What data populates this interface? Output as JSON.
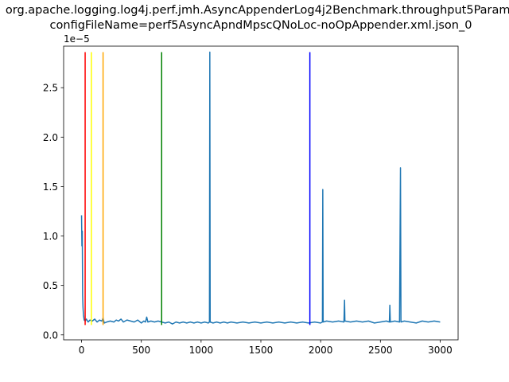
{
  "chart_data": {
    "type": "line",
    "title_lines": [
      "org.apache.logging.log4j.perf.jmh.AsyncAppenderLog4j2Benchmark.throughput5Params",
      "configFileName=perf5AsyncApndMpscQNoLoc-noOpAppender.xml.json_0"
    ],
    "xlabel": "",
    "ylabel": "",
    "y_offset_label": "1e−5",
    "xlim": [
      -150,
      3150
    ],
    "ylim": [
      -0.05,
      2.92
    ],
    "x_ticks": [
      0,
      500,
      1000,
      1500,
      2000,
      2500,
      3000
    ],
    "y_ticks": [
      0.0,
      0.5,
      1.0,
      1.5,
      2.0,
      2.5
    ],
    "y_tick_labels": [
      "0.0",
      "0.5",
      "1.0",
      "1.5",
      "2.0",
      "2.5"
    ],
    "grid": false,
    "series": [
      {
        "color": "#1f77b4",
        "points": [
          [
            0,
            1.21
          ],
          [
            3,
            0.9
          ],
          [
            6,
            1.05
          ],
          [
            9,
            0.4
          ],
          [
            12,
            0.28
          ],
          [
            16,
            0.2
          ],
          [
            22,
            0.15
          ],
          [
            30,
            0.14
          ],
          [
            40,
            0.16
          ],
          [
            55,
            0.13
          ],
          [
            70,
            0.15
          ],
          [
            90,
            0.14
          ],
          [
            110,
            0.16
          ],
          [
            130,
            0.13
          ],
          [
            150,
            0.15
          ],
          [
            170,
            0.14
          ],
          [
            180,
            0.17
          ],
          [
            190,
            0.12
          ],
          [
            210,
            0.13
          ],
          [
            240,
            0.14
          ],
          [
            270,
            0.13
          ],
          [
            290,
            0.15
          ],
          [
            310,
            0.14
          ],
          [
            330,
            0.16
          ],
          [
            350,
            0.13
          ],
          [
            380,
            0.15
          ],
          [
            410,
            0.14
          ],
          [
            440,
            0.13
          ],
          [
            470,
            0.15
          ],
          [
            500,
            0.12
          ],
          [
            520,
            0.14
          ],
          [
            535,
            0.13
          ],
          [
            545,
            0.18
          ],
          [
            555,
            0.13
          ],
          [
            580,
            0.14
          ],
          [
            610,
            0.13
          ],
          [
            640,
            0.14
          ],
          [
            670,
            0.13
          ],
          [
            700,
            0.12
          ],
          [
            730,
            0.13
          ],
          [
            760,
            0.11
          ],
          [
            790,
            0.13
          ],
          [
            820,
            0.12
          ],
          [
            850,
            0.13
          ],
          [
            880,
            0.12
          ],
          [
            910,
            0.13
          ],
          [
            940,
            0.12
          ],
          [
            970,
            0.13
          ],
          [
            1000,
            0.12
          ],
          [
            1030,
            0.13
          ],
          [
            1060,
            0.12
          ],
          [
            1070,
            0.13
          ],
          [
            1073,
            2.86
          ],
          [
            1076,
            0.13
          ],
          [
            1100,
            0.12
          ],
          [
            1130,
            0.13
          ],
          [
            1160,
            0.12
          ],
          [
            1190,
            0.13
          ],
          [
            1220,
            0.12
          ],
          [
            1250,
            0.13
          ],
          [
            1300,
            0.12
          ],
          [
            1350,
            0.13
          ],
          [
            1400,
            0.12
          ],
          [
            1450,
            0.13
          ],
          [
            1500,
            0.12
          ],
          [
            1550,
            0.13
          ],
          [
            1600,
            0.12
          ],
          [
            1650,
            0.13
          ],
          [
            1700,
            0.12
          ],
          [
            1750,
            0.13
          ],
          [
            1800,
            0.12
          ],
          [
            1850,
            0.13
          ],
          [
            1900,
            0.12
          ],
          [
            1950,
            0.13
          ],
          [
            2000,
            0.12
          ],
          [
            2015,
            0.13
          ],
          [
            2018,
            1.47
          ],
          [
            2021,
            0.13
          ],
          [
            2050,
            0.14
          ],
          [
            2100,
            0.13
          ],
          [
            2150,
            0.14
          ],
          [
            2195,
            0.13
          ],
          [
            2200,
            0.35
          ],
          [
            2203,
            0.14
          ],
          [
            2250,
            0.13
          ],
          [
            2300,
            0.14
          ],
          [
            2350,
            0.13
          ],
          [
            2400,
            0.14
          ],
          [
            2450,
            0.12
          ],
          [
            2500,
            0.13
          ],
          [
            2550,
            0.14
          ],
          [
            2575,
            0.13
          ],
          [
            2579,
            0.3
          ],
          [
            2583,
            0.13
          ],
          [
            2620,
            0.14
          ],
          [
            2660,
            0.13
          ],
          [
            2668,
            1.69
          ],
          [
            2672,
            0.13
          ],
          [
            2700,
            0.14
          ],
          [
            2750,
            0.13
          ],
          [
            2800,
            0.12
          ],
          [
            2850,
            0.14
          ],
          [
            2900,
            0.13
          ],
          [
            2950,
            0.14
          ],
          [
            3000,
            0.13
          ]
        ]
      }
    ],
    "vlines": [
      {
        "x": 30,
        "ymin": 0.1,
        "ymax": 2.86,
        "color": "#ff0000"
      },
      {
        "x": 82,
        "ymin": 0.1,
        "ymax": 2.86,
        "color": "#ffff00"
      },
      {
        "x": 180,
        "ymin": 0.1,
        "ymax": 2.86,
        "color": "#ffa500"
      },
      {
        "x": 670,
        "ymin": 0.1,
        "ymax": 2.86,
        "color": "#008000"
      },
      {
        "x": 1910,
        "ymin": 0.1,
        "ymax": 2.86,
        "color": "#0000ff"
      }
    ]
  }
}
